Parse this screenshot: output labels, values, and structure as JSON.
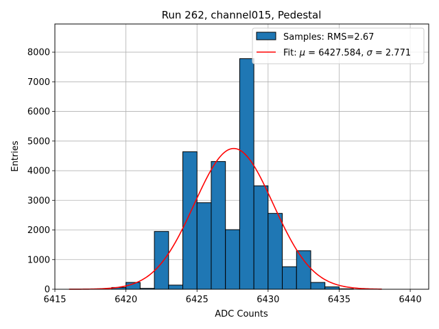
{
  "chart_data": {
    "type": "bar",
    "title": "Run 262, channel015, Pedestal",
    "xlabel": "ADC Counts",
    "ylabel": "Entries",
    "xlim": [
      6415,
      6441.3
    ],
    "ylim": [
      0,
      8950
    ],
    "xticks": [
      6415,
      6420,
      6425,
      6430,
      6435,
      6440
    ],
    "yticks": [
      0,
      1000,
      2000,
      3000,
      4000,
      5000,
      6000,
      7000,
      8000
    ],
    "grid": true,
    "legend_position": "top-right",
    "histogram": {
      "name": "Samples: RMS=2.67",
      "color": "#1f77b4",
      "bin_width": 1,
      "bin_left_edges": [
        6419,
        6420,
        6421,
        6422,
        6423,
        6424,
        6425,
        6426,
        6427,
        6428,
        6429,
        6430,
        6431,
        6432,
        6433,
        6434,
        6435
      ],
      "counts": [
        60,
        230,
        30,
        1950,
        140,
        4640,
        2920,
        4310,
        2010,
        7780,
        3490,
        2560,
        760,
        1300,
        230,
        80,
        15
      ]
    },
    "fit": {
      "name": "Fit: μ = 6427.584, σ = 2.771",
      "legend_prefix": "Fit: ",
      "legend_mu": "μ",
      "legend_mu_value": " = 6427.584, ",
      "legend_sigma": "σ",
      "legend_sigma_value": " = 2.771",
      "color": "#ff0000",
      "mu": 6427.584,
      "sigma": 2.771,
      "amplitude": 4750,
      "x_range": [
        6416,
        6438
      ]
    }
  }
}
